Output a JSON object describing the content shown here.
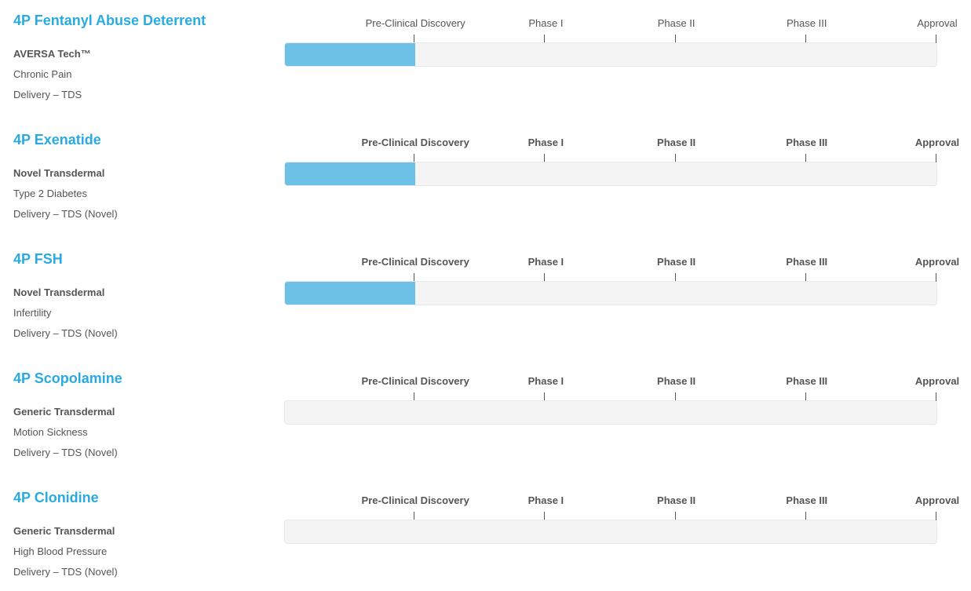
{
  "stages": [
    "Pre-Clinical Discovery",
    "Phase I",
    "Phase II",
    "Phase III",
    "Approval"
  ],
  "programs": [
    {
      "name": "4P Fentanyl Abuse Deterrent",
      "lines": [
        "AVERSA Tech™",
        "Chronic Pain",
        "Delivery – TDS"
      ],
      "stages_completed": 1
    },
    {
      "name": "4P Exenatide",
      "lines": [
        "Novel Transdermal",
        "Type 2 Diabetes",
        "Delivery – TDS (Novel)"
      ],
      "stages_completed": 1
    },
    {
      "name": "4P FSH",
      "lines": [
        "Novel Transdermal",
        "Infertility",
        "Delivery – TDS (Novel)"
      ],
      "stages_completed": 1
    },
    {
      "name": "4P Scopolamine",
      "lines": [
        "Generic Transdermal",
        "Motion Sickness",
        "Delivery – TDS (Novel)"
      ],
      "stages_completed": 0
    },
    {
      "name": "4P Clonidine",
      "lines": [
        "Generic Transdermal",
        "High Blood Pressure",
        "Delivery – TDS (Novel)"
      ],
      "stages_completed": 0
    }
  ]
}
